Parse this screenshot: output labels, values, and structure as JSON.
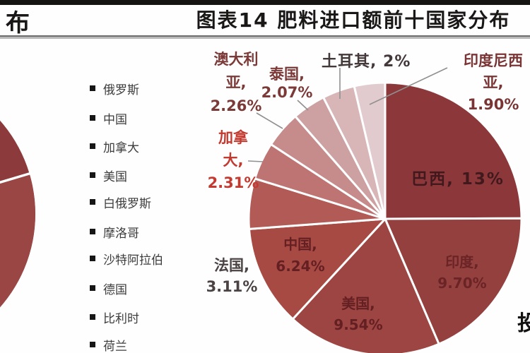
{
  "header": {
    "left_title_fragment": "布",
    "title": "图表14 肥料进口额前十国家分布"
  },
  "legend": {
    "items": [
      "俄罗斯",
      "中国",
      "加拿大",
      "美国",
      "白俄罗斯",
      "摩洛哥",
      "沙特阿拉伯",
      "德国",
      "比利时",
      "荷兰"
    ]
  },
  "chart_data": {
    "type": "pie",
    "title": "图表14 肥料进口额前十国家分布",
    "unit": "%",
    "layout": {
      "start_angle_deg": 0,
      "direction": "clockwise",
      "normalized_to_circle": true,
      "legend_position": "left-of-chart (belongs to adjacent cropped chart)"
    },
    "slices": [
      {
        "id": "brazil",
        "label": "巴西",
        "value": 13.0,
        "display": "13%",
        "color": "#8c383b"
      },
      {
        "id": "india",
        "label": "印度",
        "value": 9.7,
        "display": "9.70%",
        "color": "#94403f"
      },
      {
        "id": "usa",
        "label": "美国",
        "value": 9.54,
        "display": "9.54%",
        "color": "#9c4542"
      },
      {
        "id": "china",
        "label": "中国",
        "value": 6.24,
        "display": "6.24%",
        "color": "#a84a44"
      },
      {
        "id": "france",
        "label": "法国",
        "value": 3.11,
        "display": "3.11%",
        "color": "#b15a56"
      },
      {
        "id": "canada",
        "label": "加拿大",
        "value": 2.31,
        "display": "2.31%",
        "color": "#bd7472"
      },
      {
        "id": "australia",
        "label": "澳大利亚",
        "value": 2.26,
        "display": "2.26%",
        "color": "#c68c8c"
      },
      {
        "id": "thailand",
        "label": "泰国",
        "value": 2.07,
        "display": "2.07%",
        "color": "#cda0a1"
      },
      {
        "id": "turkey",
        "label": "土耳其",
        "value": 2.0,
        "display": "2%",
        "color": "#d8b5b6"
      },
      {
        "id": "indonesia",
        "label": "印度尼西亚",
        "value": 1.9,
        "display": "1.90%",
        "color": "#e2cbce"
      }
    ]
  },
  "callouts": {
    "australia": {
      "l1": "澳大利",
      "l2": "亚,",
      "l3": "2.26%"
    },
    "thailand": {
      "l1": "泰国,",
      "l2": "2.07%"
    },
    "turkey": {
      "l1": "土耳其, 2%"
    },
    "indonesia": {
      "l1": "印度尼西",
      "l2": "亚,",
      "l3": "1.90%"
    },
    "canada": {
      "l1": "加拿",
      "l2": "大,",
      "l3": "2.31%"
    },
    "france": {
      "l1": "法国,",
      "l2": "3.11%"
    },
    "brazil": {
      "l1": "巴西, 13%"
    },
    "china": {
      "l1": "中国,",
      "l2": "6.24%"
    },
    "usa": {
      "l1": "美国,",
      "l2": "9.54%"
    },
    "india": {
      "l1": "印度,",
      "l2": "9.70%"
    }
  },
  "fragments": {
    "right_edge_glyph": "投"
  },
  "colors": {
    "left_pie_upper": "#8d3a3c",
    "left_pie_lower": "#9a4644",
    "separator": "#ffffff",
    "leader_line": "#909090"
  }
}
